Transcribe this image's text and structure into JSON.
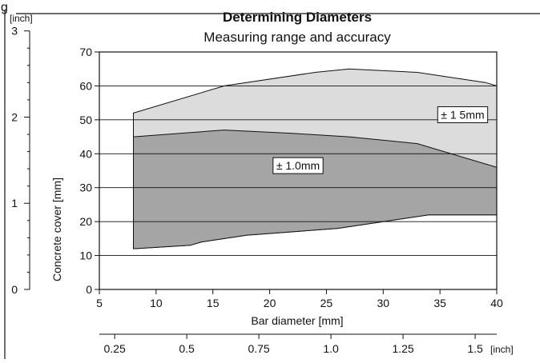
{
  "corner_label": "g",
  "chart_data": {
    "type": "area",
    "title": "Determining Diameters",
    "subtitle": "Measuring range and accuracy",
    "xlabel": "Bar diameter [mm]",
    "ylabel": "Concrete cover [mm]",
    "xlim": [
      5,
      40
    ],
    "ylim": [
      0,
      70
    ],
    "x_ticks": [
      5,
      10,
      15,
      20,
      25,
      30,
      35,
      40
    ],
    "y_ticks": [
      0,
      10,
      20,
      30,
      40,
      50,
      60,
      70
    ],
    "grid": "horizontal",
    "secondary_y": {
      "unit": "[inch]",
      "ticks": [
        {
          "label": "0",
          "value": 0
        },
        {
          "label": "1",
          "value": 25.4
        },
        {
          "label": "2",
          "value": 50.8
        },
        {
          "label": "3",
          "value": 76.2
        }
      ]
    },
    "secondary_x": {
      "unit": "[inch]",
      "ticks": [
        {
          "label": "0.25",
          "value": 6.35
        },
        {
          "label": "0.5",
          "value": 12.7
        },
        {
          "label": "0.75",
          "value": 19.05
        },
        {
          "label": "1.0",
          "value": 25.4
        },
        {
          "label": "1.25",
          "value": 31.75
        },
        {
          "label": "1.5",
          "value": 38.1
        }
      ]
    },
    "regions": [
      {
        "name": "± 1 5mm",
        "color": "#dcdcdc",
        "label_at": [
          37,
          51.5
        ],
        "upper": [
          [
            8,
            52
          ],
          [
            16,
            60
          ],
          [
            24,
            64
          ],
          [
            27,
            65
          ],
          [
            33,
            64
          ],
          [
            39,
            61
          ],
          [
            40,
            60
          ]
        ],
        "lower": [
          [
            8,
            16
          ],
          [
            8,
            12
          ],
          [
            13,
            13
          ],
          [
            14,
            14
          ],
          [
            18,
            16
          ],
          [
            26,
            18
          ],
          [
            34,
            22
          ],
          [
            40,
            22
          ]
        ]
      },
      {
        "name": "± 1.0mm",
        "color": "#a5a5a5",
        "label_at": [
          22.5,
          36.5
        ],
        "upper": [
          [
            8,
            45
          ],
          [
            16,
            47
          ],
          [
            22,
            46
          ],
          [
            27,
            45
          ],
          [
            33,
            43
          ],
          [
            40,
            36
          ]
        ],
        "lower": [
          [
            8,
            12
          ],
          [
            13,
            13
          ],
          [
            14,
            14
          ],
          [
            18,
            16
          ],
          [
            26,
            18
          ],
          [
            34,
            22
          ],
          [
            40,
            22
          ]
        ]
      }
    ]
  }
}
